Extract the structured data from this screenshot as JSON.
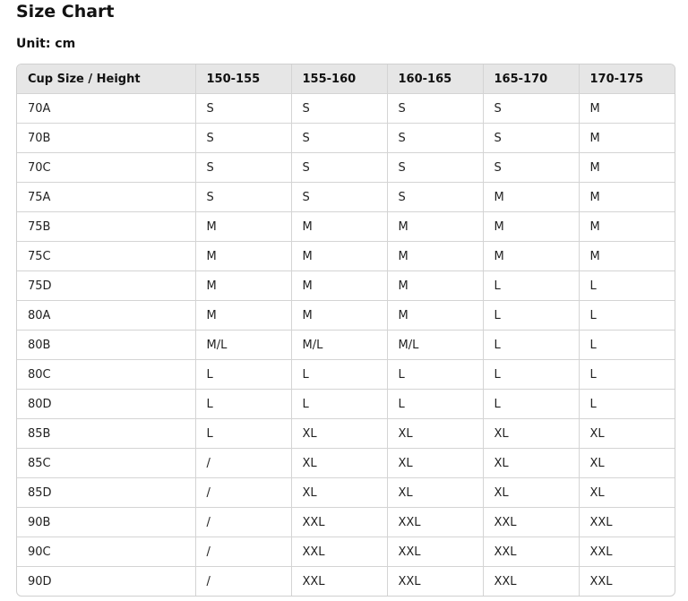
{
  "page": {
    "title": "Size Chart",
    "unit": "Unit: cm"
  },
  "table": {
    "headers": [
      "Cup Size / Height",
      "150-155",
      "155-160",
      "160-165",
      "165-170",
      "170-175"
    ],
    "rows": [
      [
        "70A",
        "S",
        "S",
        "S",
        "S",
        "M"
      ],
      [
        "70B",
        "S",
        "S",
        "S",
        "S",
        "M"
      ],
      [
        "70C",
        "S",
        "S",
        "S",
        "S",
        "M"
      ],
      [
        "75A",
        "S",
        "S",
        "S",
        "M",
        "M"
      ],
      [
        "75B",
        "M",
        "M",
        "M",
        "M",
        "M"
      ],
      [
        "75C",
        "M",
        "M",
        "M",
        "M",
        "M"
      ],
      [
        "75D",
        "M",
        "M",
        "M",
        "L",
        "L"
      ],
      [
        "80A",
        "M",
        "M",
        "M",
        "L",
        "L"
      ],
      [
        "80B",
        "M/L",
        "M/L",
        "M/L",
        "L",
        "L"
      ],
      [
        "80C",
        "L",
        "L",
        "L",
        "L",
        "L"
      ],
      [
        "80D",
        "L",
        "L",
        "L",
        "L",
        "L"
      ],
      [
        "85B",
        "L",
        "XL",
        "XL",
        "XL",
        "XL"
      ],
      [
        "85C",
        "/",
        "XL",
        "XL",
        "XL",
        "XL"
      ],
      [
        "85D",
        "/",
        "XL",
        "XL",
        "XL",
        "XL"
      ],
      [
        "90B",
        "/",
        "XXL",
        "XXL",
        "XXL",
        "XXL"
      ],
      [
        "90C",
        "/",
        "XXL",
        "XXL",
        "XXL",
        "XXL"
      ],
      [
        "90D",
        "/",
        "XXL",
        "XXL",
        "XXL",
        "XXL"
      ]
    ]
  }
}
